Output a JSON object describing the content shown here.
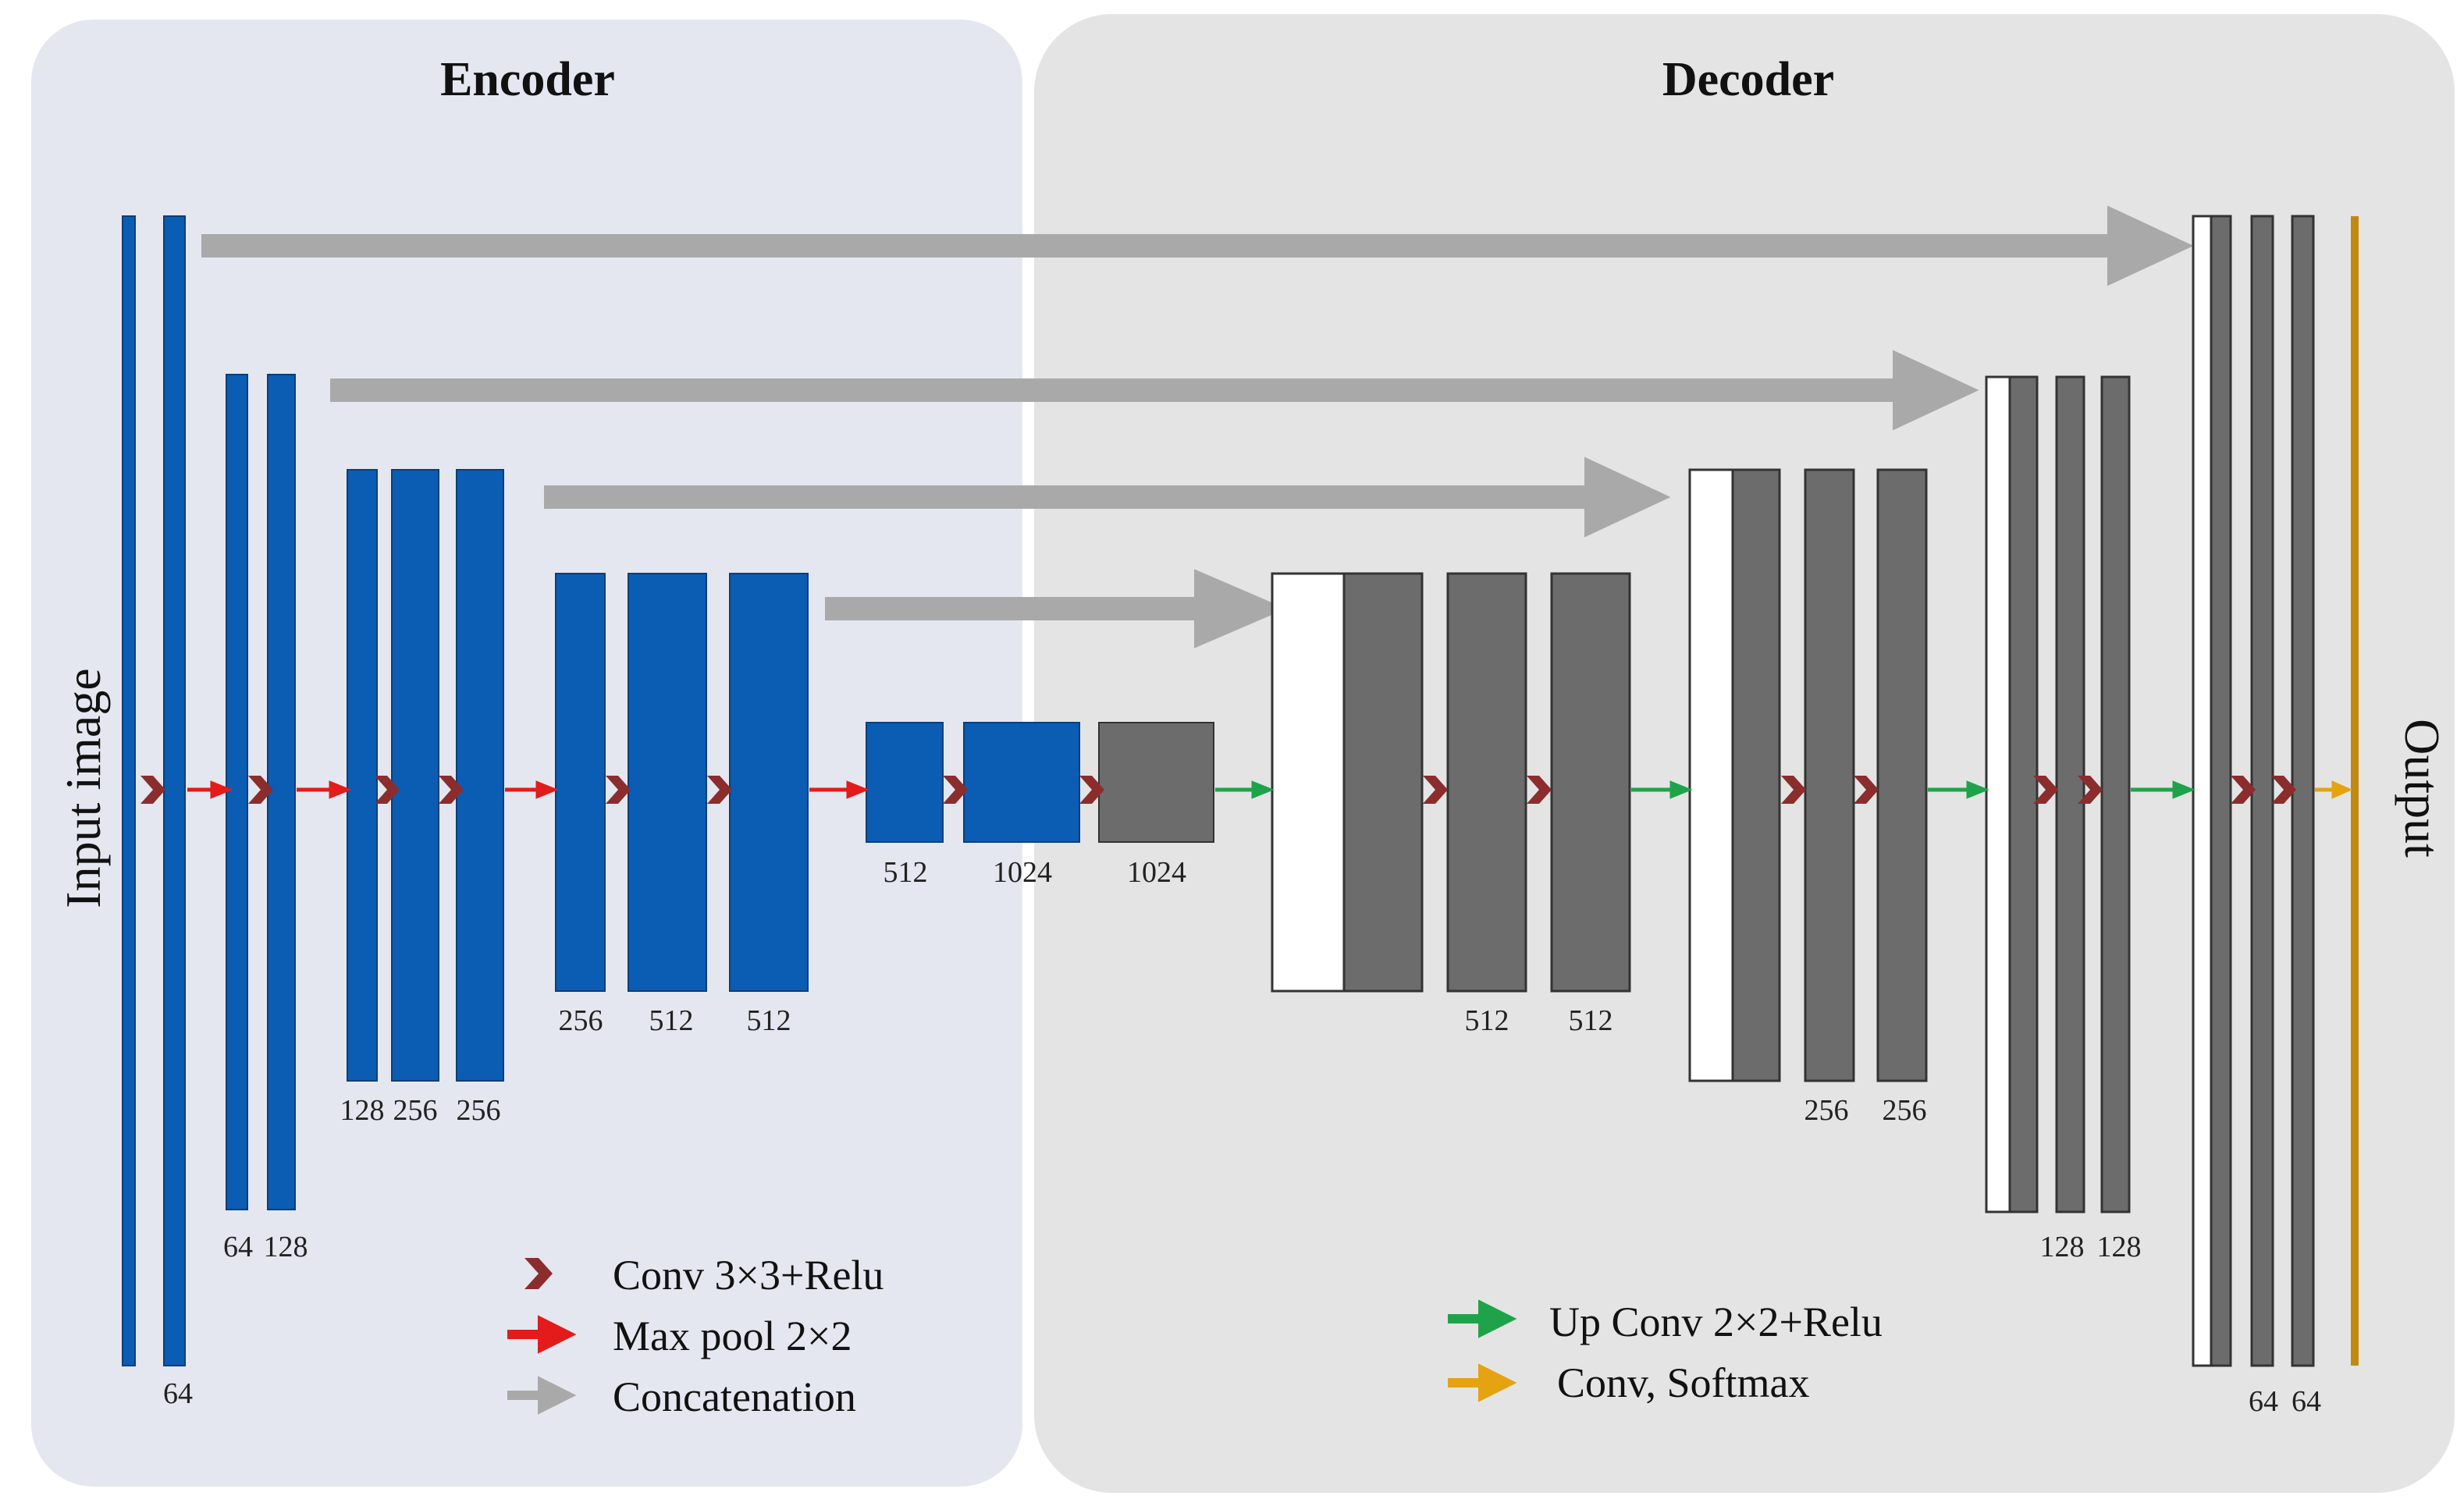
{
  "colors": {
    "encoder_bg": "#e4e7ef",
    "decoder_bg": "#e4e4e4",
    "encoder_block": "#0b5cb3",
    "decoder_block": "#6c6c6c",
    "copied_block": "#ffffff",
    "conv_marker": "#8b2d2d",
    "maxpool_arrow": "#e31b1b",
    "concat_arrow": "#a9a9a9",
    "upconv_arrow": "#1fa34a",
    "softmax_arrow": "#e5a312",
    "output_bar": "#c08a10"
  },
  "titles": {
    "encoder": "Encoder",
    "decoder": "Decoder",
    "input": "Input image",
    "output": "Output"
  },
  "labels": {
    "enc_l1": [
      "64"
    ],
    "enc_l2": [
      "64",
      "128"
    ],
    "enc_l3": [
      "128",
      "256",
      "256"
    ],
    "enc_l4": [
      "256",
      "512",
      "512"
    ],
    "bottleneck": [
      "512",
      "1024",
      "1024"
    ],
    "dec_l4": [
      "512",
      "512"
    ],
    "dec_l3": [
      "256",
      "256"
    ],
    "dec_l2": [
      "128",
      "128"
    ],
    "dec_l1": [
      "64",
      "64"
    ]
  },
  "legend": {
    "conv": "Conv 3×3+Relu",
    "maxpool": "Max pool 2×2",
    "concat": "Concatenation",
    "upconv": "Up Conv 2×2+Relu",
    "softmax": "Conv, Softmax"
  }
}
